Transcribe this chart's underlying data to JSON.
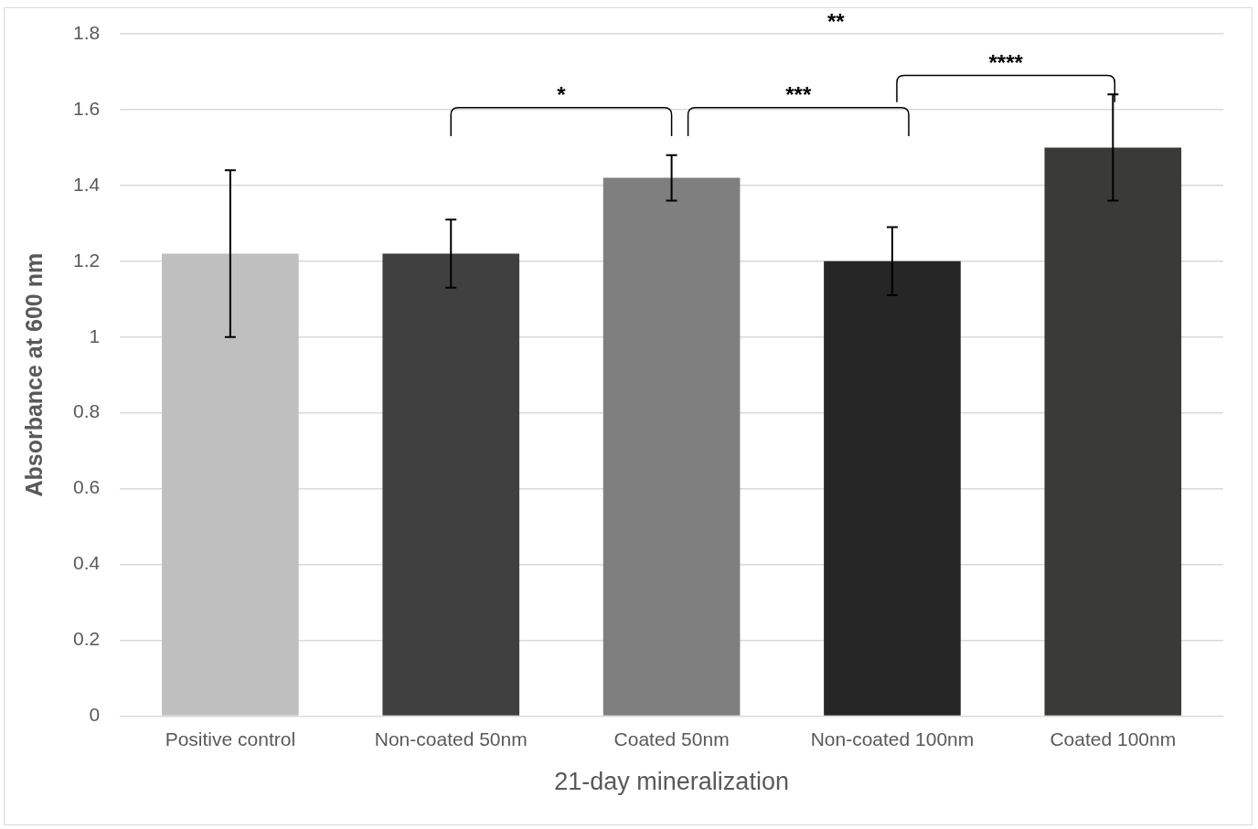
{
  "chart_data": {
    "type": "bar",
    "xlabel": "21-day mineralization",
    "ylabel": "Absorbance at 600 nm",
    "categories": [
      "Positive control",
      "Non-coated 50nm",
      "Coated 50nm",
      "Non-coated 100nm",
      "Coated 100nm"
    ],
    "values": [
      1.22,
      1.22,
      1.42,
      1.2,
      1.5
    ],
    "colors": [
      "#bfbfbf",
      "#404040",
      "#7f7f7f",
      "#262626",
      "#3a3a38"
    ],
    "errors": [
      [
        1.0,
        1.44
      ],
      [
        1.13,
        1.31
      ],
      [
        1.36,
        1.48
      ],
      [
        1.11,
        1.29
      ],
      [
        1.36,
        1.64
      ]
    ],
    "ylim": [
      0,
      1.8
    ],
    "yticks": [
      0,
      0.2,
      0.4,
      0.6,
      0.8,
      1,
      1.2,
      1.4,
      1.6,
      1.8
    ],
    "grid": "y",
    "annotations": [
      "*",
      "**",
      "***",
      "****"
    ]
  }
}
